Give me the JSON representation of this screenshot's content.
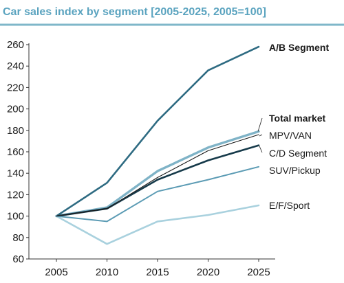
{
  "colors": {
    "title": "#5aa3bf",
    "title_rule": "#7fb7c9",
    "axis": "#333333",
    "ab": "#2e6b82",
    "total": "#7fb3c7",
    "mpv": "#1a1a1a",
    "cd": "#163a4a",
    "suv": "#5b9bb4",
    "ef": "#a9d1de"
  },
  "chart_data": {
    "type": "line",
    "title": "Car sales index by segment [2005-2025, 2005=100]",
    "x": [
      "2005",
      "2010",
      "2015",
      "2020",
      "2025"
    ],
    "xlabel": "",
    "ylabel": "",
    "ylim": [
      60,
      260
    ],
    "yticks": [
      "60",
      "80",
      "100",
      "120",
      "140",
      "160",
      "180",
      "200",
      "220",
      "240",
      "260"
    ],
    "grid": false,
    "legend": "direct labels at right",
    "series": [
      {
        "name": "A/B Segment",
        "values": [
          100,
          131,
          189,
          236,
          258
        ],
        "color_key": "ab",
        "width": 2.6,
        "bold": true
      },
      {
        "name": "Total market",
        "values": [
          100,
          108,
          142,
          164,
          179
        ],
        "color_key": "total",
        "width": 3.4,
        "bold": true
      },
      {
        "name": "MPV/VAN",
        "values": [
          100,
          107,
          136,
          161,
          176
        ],
        "color_key": "mpv",
        "width": 1.1,
        "bold": false
      },
      {
        "name": "C/D Segment",
        "values": [
          100,
          107,
          134,
          152,
          166
        ],
        "color_key": "cd",
        "width": 2.6,
        "bold": false
      },
      {
        "name": "SUV/Pickup",
        "values": [
          100,
          95,
          123,
          134,
          146
        ],
        "color_key": "suv",
        "width": 2.0,
        "bold": false
      },
      {
        "name": "E/F/Sport",
        "values": [
          100,
          74,
          95,
          101,
          110
        ],
        "color_key": "ef",
        "width": 2.6,
        "bold": false
      }
    ]
  }
}
